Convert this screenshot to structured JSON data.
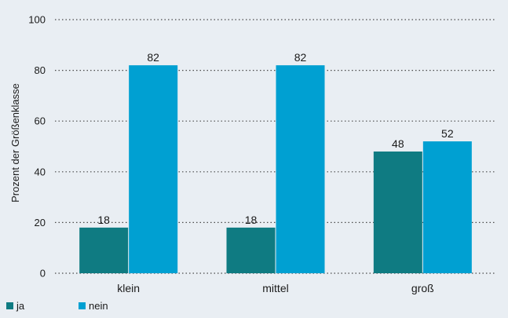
{
  "chart_data": {
    "type": "bar",
    "categories": [
      "klein",
      "mittel",
      "groß"
    ],
    "series": [
      {
        "name": "ja",
        "values": [
          18,
          18,
          48
        ],
        "color": "#0f7b82"
      },
      {
        "name": "nein",
        "values": [
          82,
          82,
          52
        ],
        "color": "#00a0d2"
      }
    ],
    "ylabel": "Prozent der Größenklasse",
    "xlabel": "",
    "ylim": [
      0,
      100
    ],
    "yticks": [
      0,
      20,
      40,
      60,
      80,
      100
    ],
    "grid": true,
    "legend": "bottom-left",
    "background": "#e9eef3"
  }
}
